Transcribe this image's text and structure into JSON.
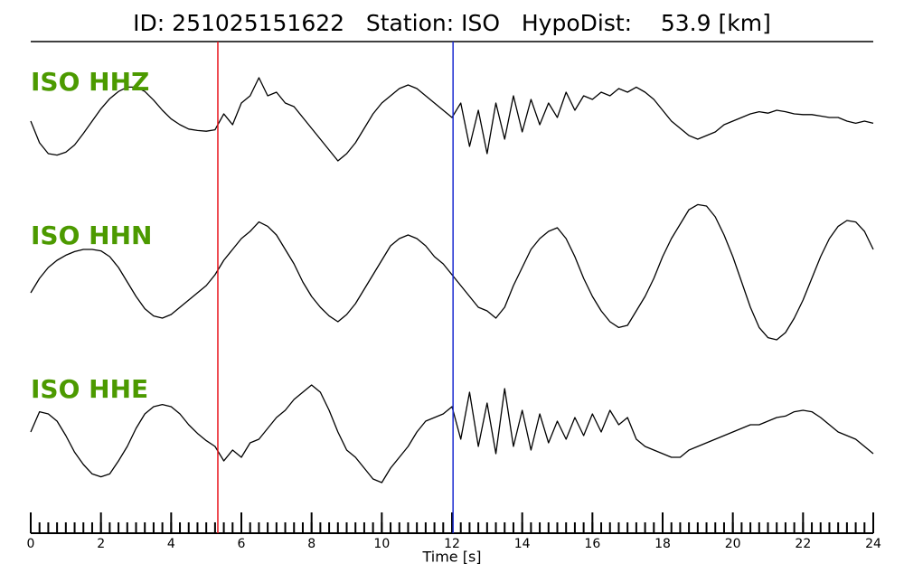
{
  "chart_data": {
    "type": "line",
    "title": "ID: 251025151622   Station: ISO   HypoDist:    53.9 [km]",
    "xlabel": "Time [s]",
    "xlim": [
      0,
      24
    ],
    "xticks": [
      0,
      2,
      4,
      6,
      8,
      10,
      12,
      14,
      16,
      18,
      20,
      22,
      24
    ],
    "xminorticks": [
      0,
      0.25,
      0.5,
      0.75,
      1,
      1.25,
      1.5,
      1.75,
      2,
      2.25,
      2.5,
      2.75,
      3,
      3.25,
      3.5,
      3.75,
      4,
      4.25,
      4.5,
      4.75,
      5,
      5.25,
      5.5,
      5.75,
      6,
      6.25,
      6.5,
      6.75,
      7,
      7.25,
      7.5,
      7.75,
      8,
      8.25,
      8.5,
      8.75,
      9,
      9.25,
      9.5,
      9.75,
      10,
      10.25,
      10.5,
      10.75,
      11,
      11.25,
      11.5,
      11.75,
      12,
      12.25,
      12.5,
      12.75,
      13,
      13.25,
      13.5,
      13.75,
      14,
      14.25,
      14.5,
      14.75,
      15,
      15.25,
      15.5,
      15.75,
      16,
      16.25,
      16.5,
      16.75,
      17,
      17.25,
      17.5,
      17.75,
      18,
      18.25,
      18.5,
      18.75,
      19,
      19.25,
      19.5,
      19.75,
      20,
      20.25,
      20.5,
      20.75,
      21,
      21.25,
      21.5,
      21.75,
      22,
      22.25,
      22.5,
      22.75,
      23,
      23.25,
      23.5,
      23.75,
      24
    ],
    "ylim": [
      -1,
      1
    ],
    "label_color": "#4c9a00",
    "picks": [
      {
        "value": 5.33,
        "color": "#e8141c"
      },
      {
        "value": 12.03,
        "color": "#1a2ad0"
      }
    ],
    "x": [
      0,
      0.25,
      0.5,
      0.75,
      1,
      1.25,
      1.5,
      1.75,
      2,
      2.25,
      2.5,
      2.75,
      3,
      3.25,
      3.5,
      3.75,
      4,
      4.25,
      4.5,
      4.75,
      5,
      5.25,
      5.5,
      5.75,
      6,
      6.25,
      6.5,
      6.75,
      7,
      7.25,
      7.5,
      7.75,
      8,
      8.25,
      8.5,
      8.75,
      9,
      9.25,
      9.5,
      9.75,
      10,
      10.25,
      10.5,
      10.75,
      11,
      11.25,
      11.5,
      11.75,
      12,
      12.25,
      12.5,
      12.75,
      13,
      13.25,
      13.5,
      13.75,
      14,
      14.25,
      14.5,
      14.75,
      15,
      15.25,
      15.5,
      15.75,
      16,
      16.25,
      16.5,
      16.75,
      17,
      17.25,
      17.5,
      17.75,
      18,
      18.25,
      18.5,
      18.75,
      19,
      19.25,
      19.5,
      19.75,
      20,
      20.25,
      20.5,
      20.75,
      21,
      21.25,
      21.5,
      21.75,
      22,
      22.25,
      22.5,
      22.75,
      23,
      23.25,
      23.5,
      23.75,
      24
    ],
    "series": [
      {
        "name": "ISO HHZ",
        "color": "#000000",
        "values": [
          -0.05,
          -0.35,
          -0.5,
          -0.52,
          -0.48,
          -0.38,
          -0.22,
          -0.05,
          0.12,
          0.26,
          0.36,
          0.42,
          0.42,
          0.36,
          0.24,
          0.1,
          -0.02,
          -0.1,
          -0.16,
          -0.18,
          -0.19,
          -0.17,
          0.05,
          -0.1,
          0.2,
          0.3,
          0.55,
          0.3,
          0.35,
          0.2,
          0.15,
          0.0,
          -0.15,
          -0.3,
          -0.45,
          -0.6,
          -0.5,
          -0.35,
          -0.15,
          0.05,
          0.2,
          0.3,
          0.4,
          0.45,
          0.4,
          0.3,
          0.2,
          0.1,
          0.0,
          0.2,
          -0.4,
          0.1,
          -0.5,
          0.2,
          -0.3,
          0.3,
          -0.2,
          0.25,
          -0.1,
          0.2,
          0.0,
          0.35,
          0.1,
          0.3,
          0.25,
          0.35,
          0.3,
          0.4,
          0.35,
          0.42,
          0.35,
          0.25,
          0.1,
          -0.05,
          -0.15,
          -0.25,
          -0.3,
          -0.25,
          -0.2,
          -0.1,
          -0.05,
          0.0,
          0.05,
          0.08,
          0.06,
          0.1,
          0.08,
          0.05,
          0.04,
          0.04,
          0.02,
          0.0,
          0.0,
          -0.05,
          -0.08,
          -0.05,
          -0.08
        ]
      },
      {
        "name": "ISO HHN",
        "color": "#000000",
        "values": [
          -0.3,
          -0.1,
          0.05,
          0.15,
          0.22,
          0.27,
          0.3,
          0.3,
          0.28,
          0.2,
          0.05,
          -0.15,
          -0.35,
          -0.52,
          -0.62,
          -0.65,
          -0.6,
          -0.5,
          -0.4,
          -0.3,
          -0.2,
          -0.05,
          0.15,
          0.3,
          0.45,
          0.55,
          0.68,
          0.62,
          0.5,
          0.3,
          0.1,
          -0.15,
          -0.35,
          -0.5,
          -0.62,
          -0.7,
          -0.6,
          -0.45,
          -0.25,
          -0.05,
          0.15,
          0.35,
          0.45,
          0.5,
          0.45,
          0.35,
          0.2,
          0.1,
          -0.05,
          -0.2,
          -0.35,
          -0.5,
          -0.55,
          -0.65,
          -0.5,
          -0.2,
          0.05,
          0.3,
          0.45,
          0.55,
          0.6,
          0.45,
          0.2,
          -0.1,
          -0.35,
          -0.55,
          -0.7,
          -0.78,
          -0.75,
          -0.55,
          -0.35,
          -0.1,
          0.2,
          0.45,
          0.65,
          0.85,
          0.92,
          0.9,
          0.75,
          0.5,
          0.2,
          -0.15,
          -0.5,
          -0.78,
          -0.92,
          -0.95,
          -0.85,
          -0.65,
          -0.4,
          -0.1,
          0.2,
          0.45,
          0.62,
          0.7,
          0.68,
          0.55,
          0.3
        ]
      },
      {
        "name": "ISO HHE",
        "color": "#000000",
        "values": [
          -0.1,
          0.18,
          0.15,
          0.05,
          -0.15,
          -0.38,
          -0.55,
          -0.68,
          -0.72,
          -0.68,
          -0.5,
          -0.3,
          -0.05,
          0.15,
          0.25,
          0.28,
          0.25,
          0.15,
          0.0,
          -0.12,
          -0.22,
          -0.3,
          -0.5,
          -0.35,
          -0.45,
          -0.25,
          -0.2,
          -0.05,
          0.1,
          0.2,
          0.35,
          0.45,
          0.55,
          0.45,
          0.2,
          -0.1,
          -0.35,
          -0.45,
          -0.6,
          -0.75,
          -0.8,
          -0.6,
          -0.45,
          -0.3,
          -0.1,
          0.05,
          0.1,
          0.15,
          0.25,
          -0.2,
          0.45,
          -0.3,
          0.3,
          -0.4,
          0.5,
          -0.3,
          0.2,
          -0.35,
          0.15,
          -0.25,
          0.05,
          -0.2,
          0.1,
          -0.15,
          0.15,
          -0.1,
          0.2,
          0.0,
          0.1,
          -0.2,
          -0.3,
          -0.35,
          -0.4,
          -0.45,
          -0.45,
          -0.35,
          -0.3,
          -0.25,
          -0.2,
          -0.15,
          -0.1,
          -0.05,
          0.0,
          0.0,
          0.05,
          0.1,
          0.12,
          0.18,
          0.2,
          0.18,
          0.1,
          0.0,
          -0.1,
          -0.15,
          -0.2,
          -0.3,
          -0.4
        ]
      }
    ]
  }
}
